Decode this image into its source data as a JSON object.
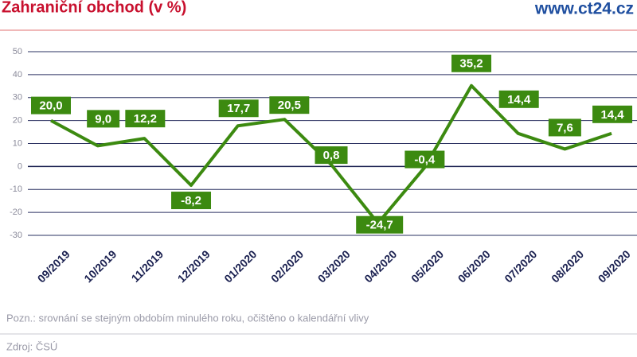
{
  "chart_data": {
    "type": "line",
    "title": "Zahraniční obchod (v %)",
    "brand": "www.ct24.cz",
    "categories": [
      "09/2019",
      "10/2019",
      "11/2019",
      "12/2019",
      "01/2020",
      "02/2020",
      "03/2020",
      "04/2020",
      "05/2020",
      "06/2020",
      "07/2020",
      "08/2020",
      "09/2020"
    ],
    "values": [
      20.0,
      9.0,
      12.2,
      -8.2,
      17.7,
      20.5,
      0.8,
      -24.7,
      -0.4,
      35.2,
      14.4,
      7.6,
      14.4
    ],
    "value_labels": [
      "20,0",
      "9,0",
      "12,2",
      "-8,2",
      "17,7",
      "20,5",
      "0,8",
      "-24,7",
      "-0,4",
      "35,2",
      "14,4",
      "7,6",
      "14,4"
    ],
    "color": "#3c8a10",
    "ylim": [
      -30,
      50
    ],
    "yticks": [
      -30,
      -20,
      -10,
      0,
      10,
      20,
      30,
      40,
      50
    ],
    "grid": true,
    "note": "Pozn.: srovnání se stejným obdobím minulého roku, očištěno o kalendářní vlivy",
    "source": "Zdroj: ČSÚ"
  }
}
